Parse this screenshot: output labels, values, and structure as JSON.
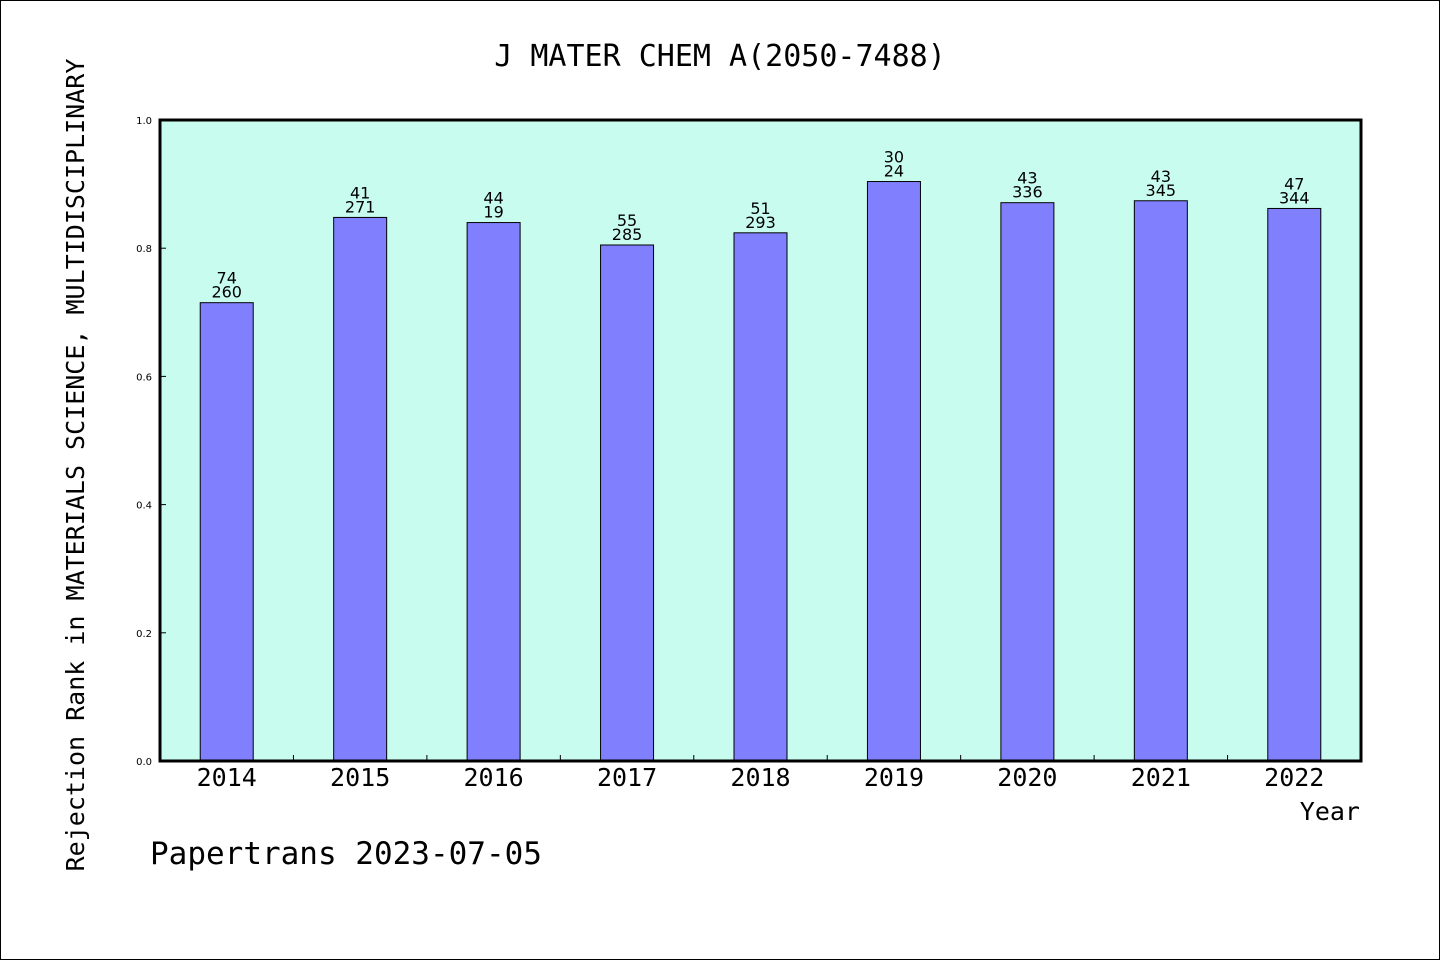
{
  "chart_data": {
    "type": "bar",
    "title": "J MATER CHEM A(2050-7488)",
    "xlabel": "Year",
    "ylabel": "Rejection Rank in MATERIALS SCIENCE, MULTIDISCIPLINARY",
    "ylim": [
      0,
      1.0
    ],
    "yticks": [
      "0.0",
      "0.2",
      "0.4",
      "0.6",
      "0.8",
      "1.0"
    ],
    "categories": [
      "2014",
      "2015",
      "2016",
      "2017",
      "2018",
      "2019",
      "2020",
      "2021",
      "2022"
    ],
    "values": [
      0.715,
      0.848,
      0.84,
      0.805,
      0.824,
      0.904,
      0.871,
      0.874,
      0.862
    ],
    "labels_top": [
      "74",
      "41",
      "44",
      "55",
      "51",
      "30",
      "43",
      "43",
      "47"
    ],
    "labels_bottom": [
      "260",
      "271",
      "19",
      "285",
      "293",
      "24",
      "336",
      "345",
      "344"
    ],
    "colors": {
      "plot_bg": "#c8fcee",
      "bar": "#8080ff",
      "bar_stroke": "#000000"
    }
  },
  "footer": {
    "credit": "Papertrans 2023-07-05"
  }
}
